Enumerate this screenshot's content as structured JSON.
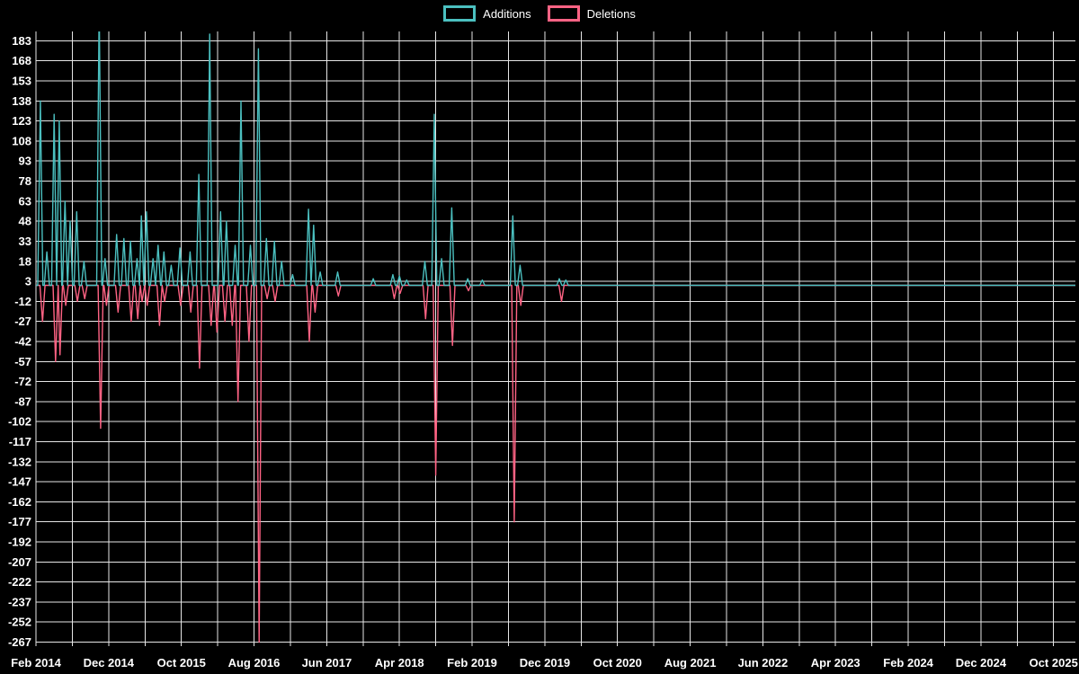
{
  "chart_data": {
    "type": "line",
    "title": "",
    "legend_position": "top-center",
    "grid": true,
    "grid_color": "#ffffff",
    "text_color": "#ffffff",
    "background_color": "#000000",
    "baseline_value": 0,
    "x_unit": "months since Feb 2014 (weekly code frequency)",
    "x_domain_months": [
      0,
      143
    ],
    "x_grid_step_months": 5,
    "x_ticks_months": [
      0,
      10,
      20,
      30,
      40,
      50,
      60,
      70,
      80,
      90,
      100,
      110,
      120,
      130,
      140
    ],
    "x_tick_labels": [
      "Feb 2014",
      "Dec 2014",
      "Oct 2015",
      "Aug 2016",
      "Jun 2017",
      "Apr 2018",
      "Feb 2019",
      "Dec 2019",
      "Oct 2020",
      "Aug 2021",
      "Jun 2022",
      "Apr 2023",
      "Feb 2024",
      "Dec 2024",
      "Oct 2025"
    ],
    "ylim": [
      -270,
      190
    ],
    "yticks": [
      183,
      168,
      153,
      138,
      123,
      108,
      93,
      78,
      63,
      48,
      33,
      18,
      3,
      -12,
      -27,
      -42,
      -57,
      -72,
      -87,
      -102,
      -117,
      -132,
      -147,
      -162,
      -177,
      -192,
      -207,
      -222,
      -237,
      -252,
      -267
    ],
    "series": [
      {
        "name": "Additions",
        "color": "#4bc0c0",
        "spikes": [
          [
            0.6,
            138
          ],
          [
            1.5,
            25
          ],
          [
            2.5,
            128
          ],
          [
            3.2,
            123
          ],
          [
            4.0,
            63
          ],
          [
            4.7,
            48
          ],
          [
            5.6,
            55
          ],
          [
            6.6,
            18
          ],
          [
            8.7,
            210
          ],
          [
            9.5,
            20
          ],
          [
            11.1,
            38
          ],
          [
            12.1,
            35
          ],
          [
            13.0,
            33
          ],
          [
            13.9,
            20
          ],
          [
            14.5,
            52
          ],
          [
            15.2,
            55
          ],
          [
            16.1,
            20
          ],
          [
            16.8,
            30
          ],
          [
            17.6,
            25
          ],
          [
            18.6,
            15
          ],
          [
            19.8,
            28
          ],
          [
            21.2,
            25
          ],
          [
            22.4,
            83
          ],
          [
            23.9,
            188
          ],
          [
            25.4,
            55
          ],
          [
            26.2,
            48
          ],
          [
            27.4,
            30
          ],
          [
            28.2,
            138
          ],
          [
            29.5,
            30
          ],
          [
            30.6,
            177
          ],
          [
            31.7,
            35
          ],
          [
            32.8,
            33
          ],
          [
            33.8,
            18
          ],
          [
            35.3,
            8
          ],
          [
            37.5,
            57
          ],
          [
            38.2,
            45
          ],
          [
            39.1,
            10
          ],
          [
            41.5,
            10
          ],
          [
            46.4,
            5
          ],
          [
            49.1,
            8
          ],
          [
            50.0,
            7
          ],
          [
            51.0,
            4
          ],
          [
            53.5,
            18
          ],
          [
            54.8,
            128
          ],
          [
            55.8,
            20
          ],
          [
            57.2,
            58
          ],
          [
            59.4,
            5
          ],
          [
            61.4,
            4
          ],
          [
            65.6,
            52
          ],
          [
            66.6,
            15
          ],
          [
            72.0,
            5
          ],
          [
            72.9,
            4
          ]
        ]
      },
      {
        "name": "Deletions",
        "color": "#ff6384",
        "spikes": [
          [
            0.9,
            -27
          ],
          [
            2.7,
            -57
          ],
          [
            3.3,
            -52
          ],
          [
            4.1,
            -15
          ],
          [
            5.7,
            -12
          ],
          [
            6.7,
            -10
          ],
          [
            8.9,
            -107
          ],
          [
            9.7,
            -15
          ],
          [
            11.3,
            -20
          ],
          [
            13.1,
            -27
          ],
          [
            14.0,
            -25
          ],
          [
            14.6,
            -12
          ],
          [
            15.3,
            -15
          ],
          [
            17.0,
            -30
          ],
          [
            17.7,
            -12
          ],
          [
            19.9,
            -15
          ],
          [
            21.3,
            -20
          ],
          [
            22.5,
            -62
          ],
          [
            24.1,
            -30
          ],
          [
            24.9,
            -35
          ],
          [
            26.0,
            -27
          ],
          [
            27.0,
            -30
          ],
          [
            27.8,
            -87
          ],
          [
            29.3,
            -42
          ],
          [
            30.7,
            -267
          ],
          [
            31.8,
            -10
          ],
          [
            32.9,
            -12
          ],
          [
            37.6,
            -42
          ],
          [
            38.4,
            -20
          ],
          [
            41.6,
            -8
          ],
          [
            49.3,
            -10
          ],
          [
            50.1,
            -6
          ],
          [
            53.6,
            -25
          ],
          [
            55.0,
            -142
          ],
          [
            57.3,
            -45
          ],
          [
            59.5,
            -4
          ],
          [
            65.8,
            -177
          ],
          [
            66.7,
            -15
          ],
          [
            72.3,
            -12
          ]
        ]
      }
    ]
  }
}
